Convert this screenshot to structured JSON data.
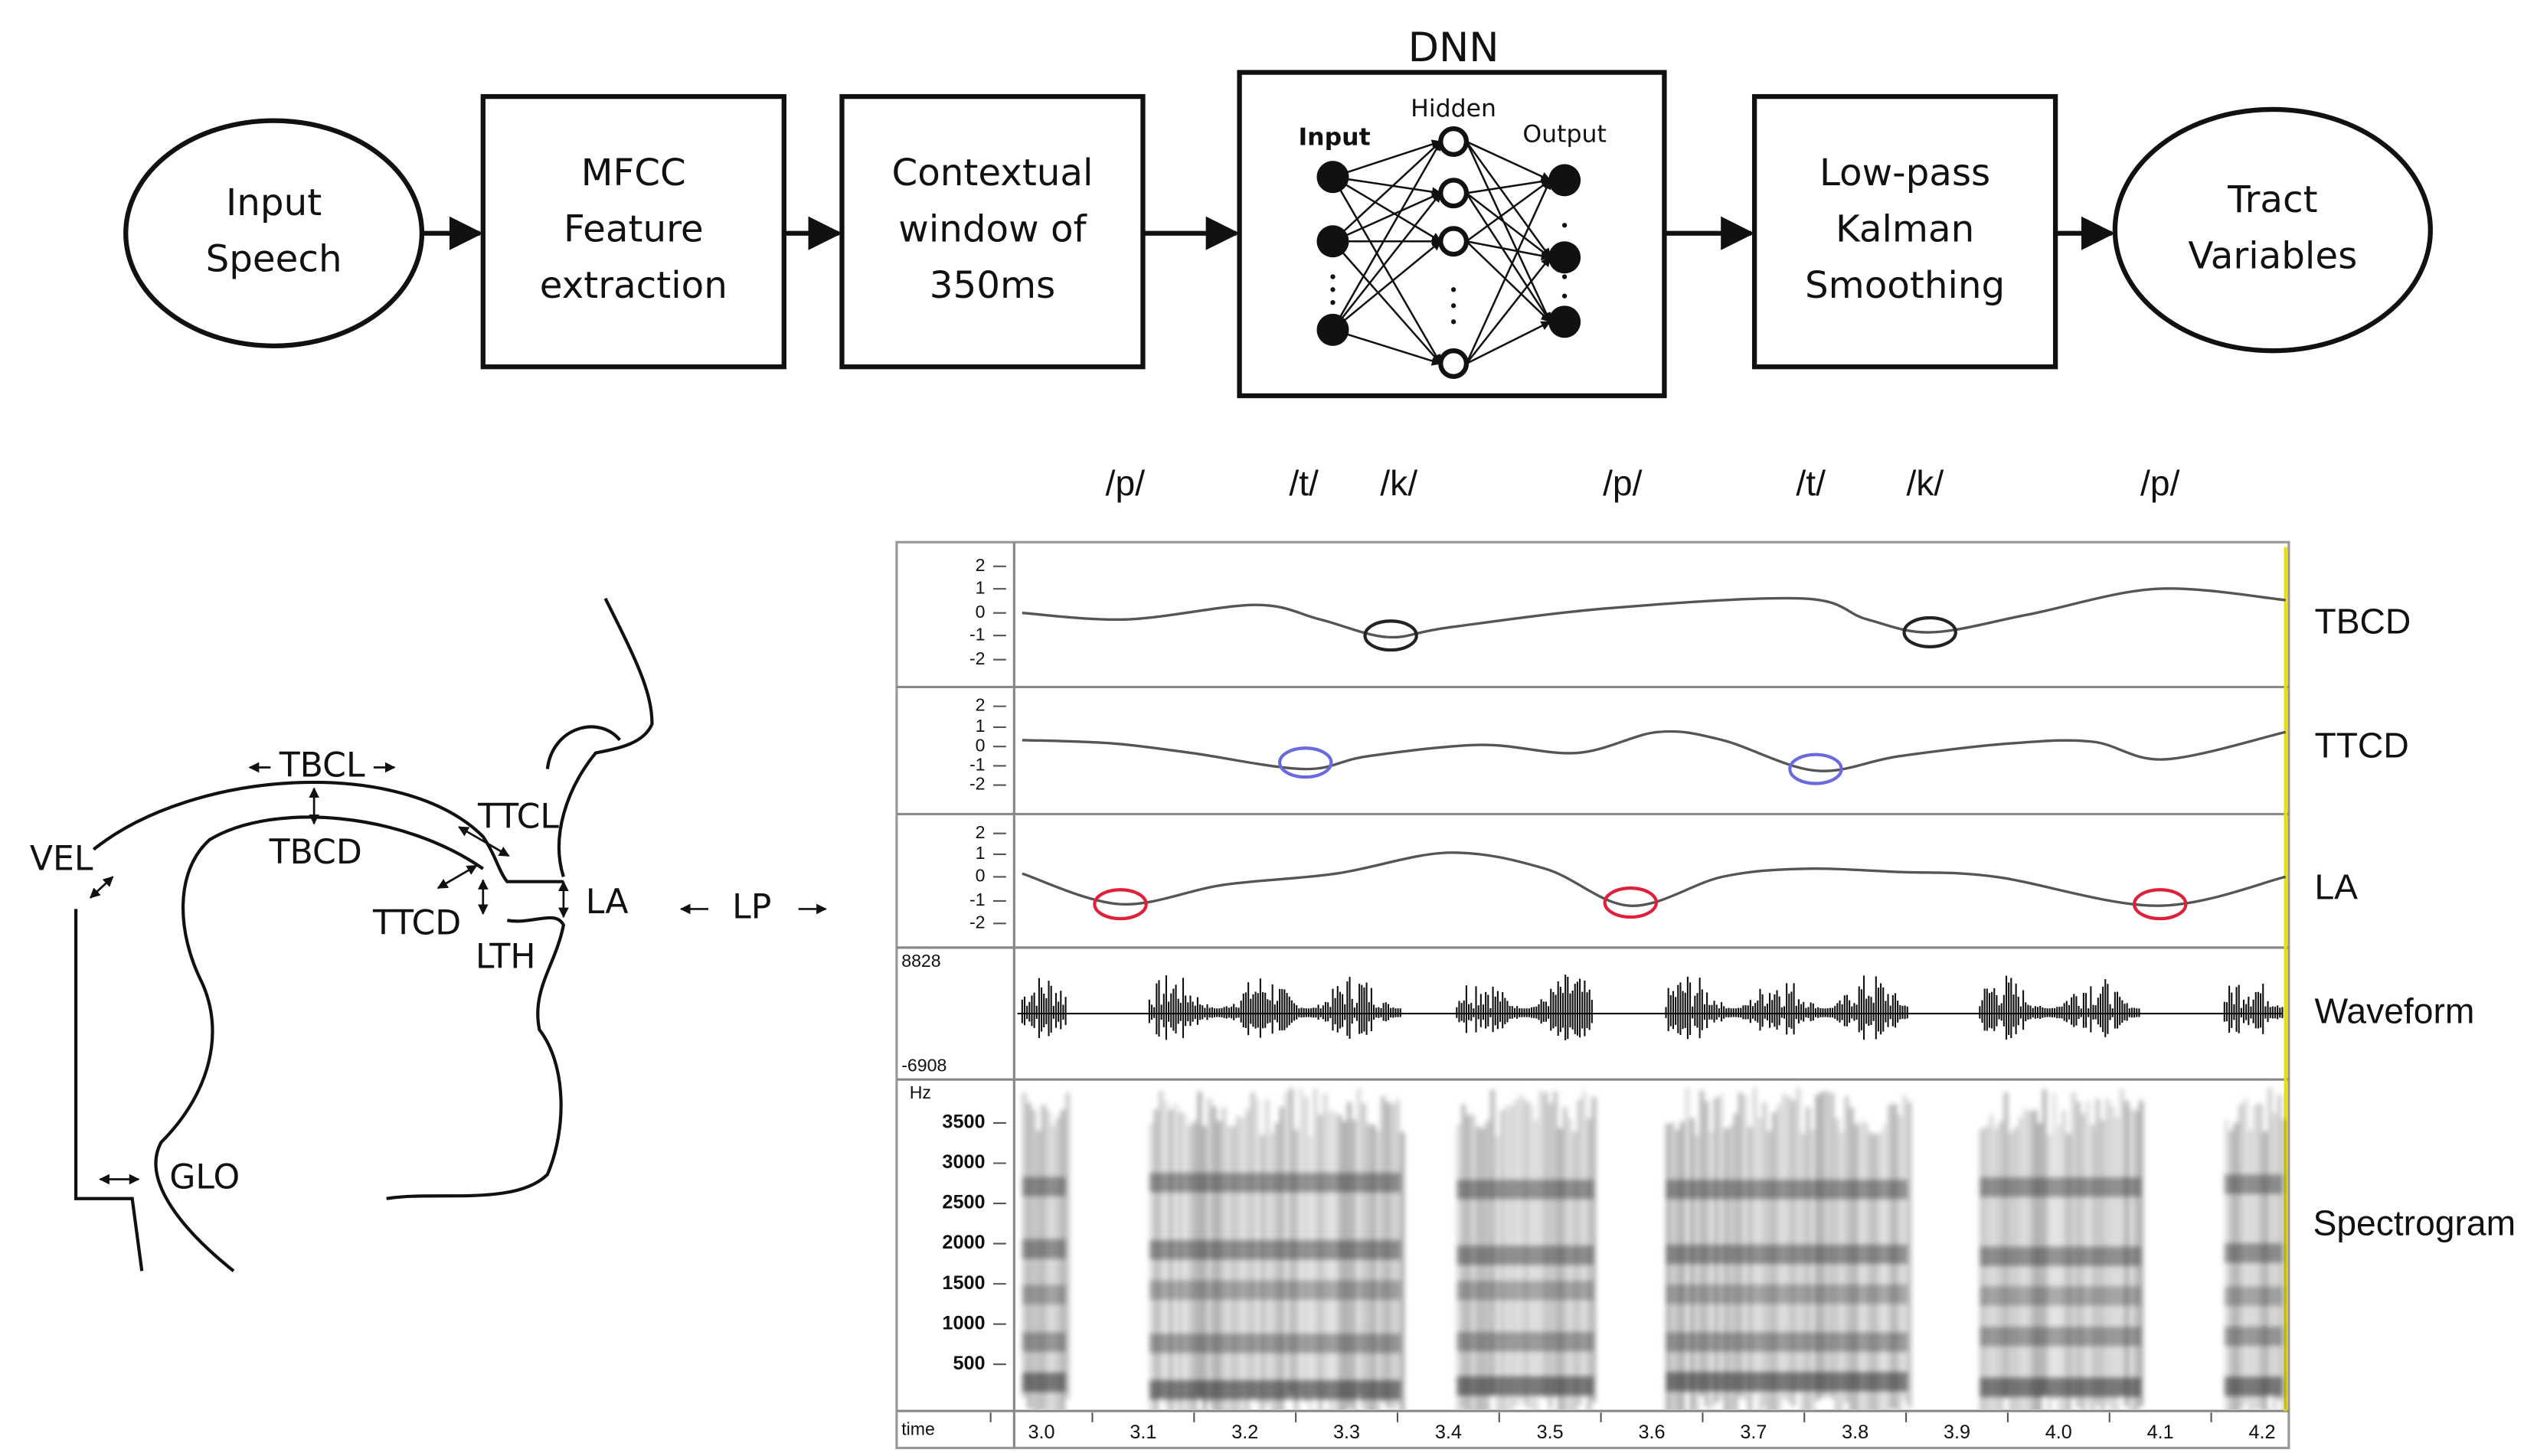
{
  "flow": {
    "nodes": [
      {
        "lines": [
          "Input",
          "Speech"
        ]
      },
      {
        "lines": [
          "MFCC",
          "Feature",
          "extraction"
        ]
      },
      {
        "lines": [
          "Contextual",
          "window of",
          "350ms"
        ]
      },
      {
        "lines": [
          "Low-pass",
          "Kalman",
          "Smoothing"
        ]
      },
      {
        "lines": [
          "Tract",
          "Variables"
        ]
      }
    ],
    "dnn": {
      "title": "DNN",
      "input": "Input",
      "hidden": "Hidden",
      "output": "Output"
    }
  },
  "vocal_tract": {
    "labels": [
      "TBCL",
      "TBCD",
      "TTCL",
      "TTCD",
      "VEL",
      "LA",
      "LP",
      "LTH",
      "GLO"
    ]
  },
  "phonemes": [
    "/p/",
    "/t/",
    "/k/",
    "/p/",
    "/t/",
    "/k/",
    "/p/"
  ],
  "tracks": [
    "TBCD",
    "TTCD",
    "LA",
    "Waveform",
    "Spectrogram"
  ],
  "tv_ticks": [
    2,
    1,
    0,
    -1,
    -2
  ],
  "waveform": {
    "max": 8828,
    "min": -6908
  },
  "spectrogram": {
    "unit": "Hz",
    "ticks": [
      3500,
      3000,
      2500,
      2000,
      1500,
      1000,
      500
    ]
  },
  "time": {
    "label": "time",
    "ticks": [
      "3.0",
      "3.1",
      "3.2",
      "3.3",
      "3.4",
      "3.5",
      "3.6",
      "3.7",
      "3.8",
      "3.9",
      "4.0",
      "4.1",
      "4.2"
    ]
  }
}
